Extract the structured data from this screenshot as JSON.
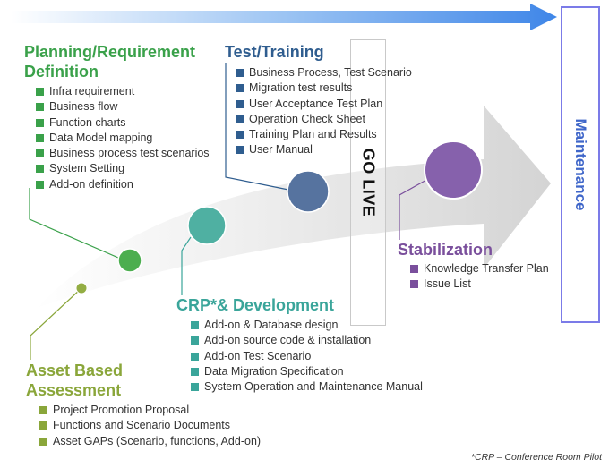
{
  "colors": {
    "planning": "#3aa14a",
    "asset": "#8aa63a",
    "crp": "#3aa59a",
    "test": "#2f5d8f",
    "stabilization": "#7a4f9c",
    "maintenance": "#3f66c9",
    "timeline_arrow": "#3f86e8"
  },
  "planning": {
    "title": "Planning/Requirement Definition",
    "items": [
      "Infra requirement",
      "Business flow",
      "Function charts",
      "Data Model mapping",
      "Business process test scenarios",
      "System Setting",
      "Add-on definition"
    ]
  },
  "test": {
    "title": "Test/Training",
    "items": [
      "Business Process, Test Scenario",
      "Migration test results",
      "User Acceptance Test Plan",
      "Operation Check Sheet",
      "Training Plan and Results",
      "User Manual"
    ]
  },
  "crp": {
    "title": "CRP*& Development",
    "items": [
      "Add-on & Database design",
      "Add-on source code & installation",
      "Add-on Test Scenario",
      "Data Migration Specification",
      "System Operation and Maintenance Manual"
    ]
  },
  "asset": {
    "title": "Asset Based Assessment",
    "items": [
      "Project Promotion Proposal",
      "Functions and Scenario Documents",
      "Asset GAPs   (Scenario, functions, Add-on)"
    ]
  },
  "stabilization": {
    "title": "Stabilization",
    "items": [
      "Knowledge Transfer Plan",
      "Issue List"
    ]
  },
  "golive": "GO LIVE",
  "maintenance": "Maintenance",
  "footnote": "*CRP – Conference Room Pilot"
}
